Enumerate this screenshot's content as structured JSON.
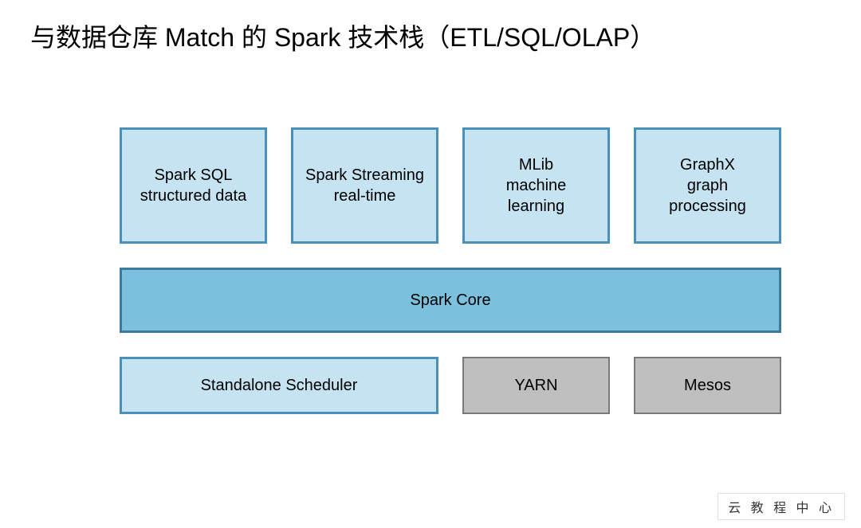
{
  "title": "与数据仓库 Match 的 Spark 技术栈（ETL/SQL/OLAP）",
  "colors": {
    "light_blue_fill": "#c5e3f0",
    "light_blue_border": "#4a90b8",
    "mid_blue_fill": "#7bc0dd",
    "mid_blue_border": "#3a7a9a",
    "gray_fill": "#bfbfbf",
    "gray_border": "#7a7a7a",
    "text": "#000000",
    "background": "#ffffff"
  },
  "layout": {
    "title_fontsize": 32,
    "box_fontsize": 20,
    "top_box_width": 185,
    "top_box_height": 146,
    "core_box_height": 82,
    "bottom_box_height": 72,
    "scheduler_width": 400,
    "small_box_width": 185,
    "row_gap": 30,
    "border_width": 3
  },
  "top_row": [
    {
      "label": "Spark SQL\nstructured data",
      "fill": "light_blue_fill",
      "border": "light_blue_border"
    },
    {
      "label": "Spark Streaming\nreal-time",
      "fill": "light_blue_fill",
      "border": "light_blue_border"
    },
    {
      "label": "MLib\nmachine\nlearning",
      "fill": "light_blue_fill",
      "border": "light_blue_border"
    },
    {
      "label": "GraphX\ngraph\nprocessing",
      "fill": "light_blue_fill",
      "border": "light_blue_border"
    }
  ],
  "core": {
    "label": "Spark Core",
    "fill": "mid_blue_fill",
    "border": "mid_blue_border"
  },
  "bottom_row": [
    {
      "label": "Standalone Scheduler",
      "fill": "light_blue_fill",
      "border": "light_blue_border",
      "size": "wide"
    },
    {
      "label": "YARN",
      "fill": "gray_fill",
      "border": "gray_border",
      "size": "small"
    },
    {
      "label": "Mesos",
      "fill": "gray_fill",
      "border": "gray_border",
      "size": "small"
    }
  ],
  "watermark": "云 教 程 中 心"
}
